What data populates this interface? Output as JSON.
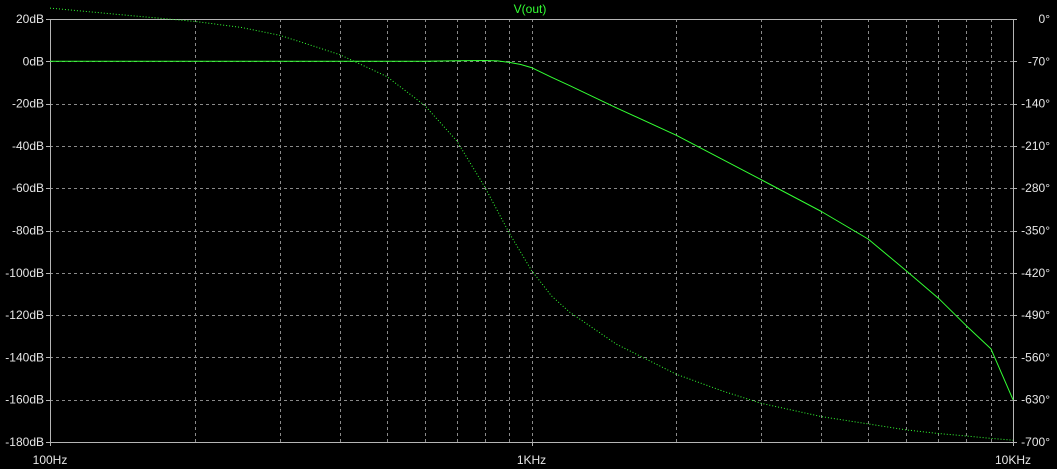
{
  "chart_data": {
    "type": "line",
    "title": "V(out)",
    "xlabel": "",
    "ylabel": "",
    "x_scale": "log",
    "xlim": [
      100,
      10000
    ],
    "x_ticks": [
      {
        "value": 100,
        "label": "100Hz"
      },
      {
        "value": 1000,
        "label": "1KHz"
      },
      {
        "value": 10000,
        "label": "10KHz"
      }
    ],
    "y_left": {
      "lim": [
        -180,
        20
      ],
      "ticks": [
        {
          "value": 20,
          "label": "20dB"
        },
        {
          "value": 0,
          "label": "0dB"
        },
        {
          "value": -20,
          "label": "-20dB"
        },
        {
          "value": -40,
          "label": "-40dB"
        },
        {
          "value": -60,
          "label": "-60dB"
        },
        {
          "value": -80,
          "label": "-80dB"
        },
        {
          "value": -100,
          "label": "-100dB"
        },
        {
          "value": -120,
          "label": "-120dB"
        },
        {
          "value": -140,
          "label": "-140dB"
        },
        {
          "value": -160,
          "label": "-160dB"
        },
        {
          "value": -180,
          "label": "-180dB"
        }
      ]
    },
    "y_right": {
      "lim": [
        -700,
        0
      ],
      "ticks": [
        {
          "value": 0,
          "label": "0°"
        },
        {
          "value": -70,
          "label": "-70°"
        },
        {
          "value": -140,
          "label": "-140°"
        },
        {
          "value": -210,
          "label": "-210°"
        },
        {
          "value": -280,
          "label": "-280°"
        },
        {
          "value": -350,
          "label": "-350°"
        },
        {
          "value": -420,
          "label": "-420°"
        },
        {
          "value": -490,
          "label": "-490°"
        },
        {
          "value": -560,
          "label": "-560°"
        },
        {
          "value": -630,
          "label": "-630°"
        },
        {
          "value": -700,
          "label": "-700°"
        }
      ]
    },
    "grid": true,
    "colors": {
      "background": "#000000",
      "trace": "#33ff33",
      "grid": "#8a8a8a",
      "axis": "#b5b5b5",
      "text": "#e6e6e6"
    },
    "series": [
      {
        "axis": "left",
        "style": "solid",
        "x": [
          100,
          200,
          400,
          600,
          700,
          800,
          850,
          900,
          950,
          1000,
          1100,
          1200,
          1500,
          2000,
          3000,
          4000,
          5000,
          6000,
          7000,
          8000,
          9000,
          10000
        ],
        "values": [
          0,
          0,
          0,
          0,
          0.3,
          0.4,
          0.2,
          -0.5,
          -1.5,
          -3,
          -7.5,
          -11.5,
          -22,
          -35,
          -56,
          -71,
          -84,
          -99,
          -112,
          -125,
          -136,
          -160
        ]
      },
      {
        "axis": "right",
        "style": "dotted",
        "x": [
          100,
          150,
          200,
          250,
          300,
          350,
          400,
          500,
          600,
          700,
          800,
          900,
          1000,
          1100,
          1200,
          1500,
          2000,
          2500,
          3000,
          4000,
          5000,
          6000,
          7000,
          8000,
          9000,
          10000
        ],
        "values": [
          18,
          5,
          -4,
          -14,
          -27,
          -44,
          -59,
          -95,
          -143,
          -202,
          -278,
          -355,
          -416,
          -458,
          -485,
          -538,
          -588,
          -616,
          -636,
          -658,
          -670,
          -680,
          -686,
          -690,
          -694,
          -697
        ]
      }
    ]
  }
}
